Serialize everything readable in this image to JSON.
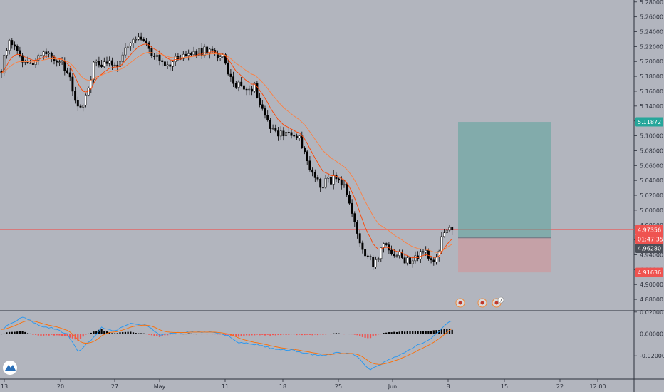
{
  "chart_data": {
    "type": "candlestick",
    "panes": {
      "price": {
        "ylim": [
          4.87,
          5.29
        ],
        "y_ticks": [
          "5.28000",
          "5.26000",
          "5.24000",
          "5.22000",
          "5.20000",
          "5.18000",
          "5.16000",
          "5.14000",
          "5.12000",
          "5.10000",
          "5.08000",
          "5.06000",
          "5.04000",
          "5.02000",
          "5.00000",
          "4.98000",
          "4.96000",
          "4.94000",
          "4.92000",
          "4.90000",
          "4.88000"
        ],
        "series": [
          {
            "role": "candles",
            "up_color": "#ffffff",
            "down_color": "#000000"
          },
          {
            "role": "ma_fast",
            "color": "#ff4500"
          },
          {
            "role": "ma_slow",
            "color": "#ff7f3f"
          }
        ],
        "anchors": [
          {
            "i": 0,
            "v": 5.19
          },
          {
            "i": 3,
            "v": 5.232
          },
          {
            "i": 6,
            "v": 5.21
          },
          {
            "i": 10,
            "v": 5.195
          },
          {
            "i": 16,
            "v": 5.215
          },
          {
            "i": 22,
            "v": 5.2
          },
          {
            "i": 25,
            "v": 5.185
          },
          {
            "i": 29,
            "v": 5.14
          },
          {
            "i": 32,
            "v": 5.15
          },
          {
            "i": 35,
            "v": 5.195
          },
          {
            "i": 39,
            "v": 5.2
          },
          {
            "i": 44,
            "v": 5.198
          },
          {
            "i": 49,
            "v": 5.225
          },
          {
            "i": 54,
            "v": 5.23
          },
          {
            "i": 58,
            "v": 5.205
          },
          {
            "i": 63,
            "v": 5.195
          },
          {
            "i": 68,
            "v": 5.208
          },
          {
            "i": 73,
            "v": 5.21
          },
          {
            "i": 78,
            "v": 5.215
          },
          {
            "i": 84,
            "v": 5.205
          },
          {
            "i": 87,
            "v": 5.175
          },
          {
            "i": 92,
            "v": 5.165
          },
          {
            "i": 96,
            "v": 5.165
          },
          {
            "i": 101,
            "v": 5.12
          },
          {
            "i": 105,
            "v": 5.102
          },
          {
            "i": 109,
            "v": 5.105
          },
          {
            "i": 113,
            "v": 5.095
          },
          {
            "i": 117,
            "v": 5.055
          },
          {
            "i": 121,
            "v": 5.035
          },
          {
            "i": 126,
            "v": 5.042
          },
          {
            "i": 130,
            "v": 5.03
          },
          {
            "i": 133,
            "v": 4.99
          },
          {
            "i": 137,
            "v": 4.95
          },
          {
            "i": 141,
            "v": 4.925
          },
          {
            "i": 145,
            "v": 4.955
          },
          {
            "i": 150,
            "v": 4.94
          },
          {
            "i": 155,
            "v": 4.93
          },
          {
            "i": 160,
            "v": 4.945
          },
          {
            "i": 164,
            "v": 4.925
          },
          {
            "i": 167,
            "v": 4.96
          },
          {
            "i": 170,
            "v": 4.978
          }
        ],
        "current_price": 4.97356,
        "countdown": "01:47:35",
        "ma_value": 4.9628
      },
      "macd": {
        "ylim": [
          -0.0318,
          0.0225
        ],
        "y_ticks": [
          "0.02000",
          "0.00000",
          "-0.02000"
        ],
        "anchors": [
          {
            "i": 0,
            "v": 0.004
          },
          {
            "i": 8,
            "v": 0.016
          },
          {
            "i": 14,
            "v": 0.008
          },
          {
            "i": 20,
            "v": 0.005
          },
          {
            "i": 25,
            "v": 0.0
          },
          {
            "i": 29,
            "v": -0.016
          },
          {
            "i": 34,
            "v": -0.006
          },
          {
            "i": 38,
            "v": 0.006
          },
          {
            "i": 43,
            "v": 0.003
          },
          {
            "i": 49,
            "v": 0.01
          },
          {
            "i": 55,
            "v": 0.008
          },
          {
            "i": 60,
            "v": -0.001
          },
          {
            "i": 70,
            "v": 0.002
          },
          {
            "i": 80,
            "v": 0.002
          },
          {
            "i": 86,
            "v": -0.002
          },
          {
            "i": 90,
            "v": -0.008
          },
          {
            "i": 97,
            "v": -0.01
          },
          {
            "i": 104,
            "v": -0.014
          },
          {
            "i": 110,
            "v": -0.015
          },
          {
            "i": 116,
            "v": -0.018
          },
          {
            "i": 122,
            "v": -0.02
          },
          {
            "i": 128,
            "v": -0.017
          },
          {
            "i": 134,
            "v": -0.019
          },
          {
            "i": 140,
            "v": -0.033
          },
          {
            "i": 146,
            "v": -0.025
          },
          {
            "i": 152,
            "v": -0.018
          },
          {
            "i": 158,
            "v": -0.01
          },
          {
            "i": 163,
            "v": -0.004
          },
          {
            "i": 167,
            "v": 0.005
          },
          {
            "i": 170,
            "v": 0.012
          }
        ]
      }
    },
    "x_ticks": [
      "13",
      "20",
      "27",
      "May",
      "11",
      "18",
      "25",
      "Jun",
      "8",
      "15",
      "22",
      "12:00"
    ],
    "position": {
      "type": "long",
      "entry": 4.9628,
      "target": 5.11872,
      "stop": 4.91636
    },
    "price_tags": [
      {
        "label": "5.11872",
        "color": "#26a69a"
      },
      {
        "label": "4.97356",
        "color": "#ef5350"
      },
      {
        "label": "01:47:35",
        "color": "#ef5350"
      },
      {
        "label": "4.96280",
        "color": "#4b4f58"
      },
      {
        "label": "4.91636",
        "color": "#ef5350"
      }
    ],
    "events": {
      "badge": "7"
    }
  }
}
